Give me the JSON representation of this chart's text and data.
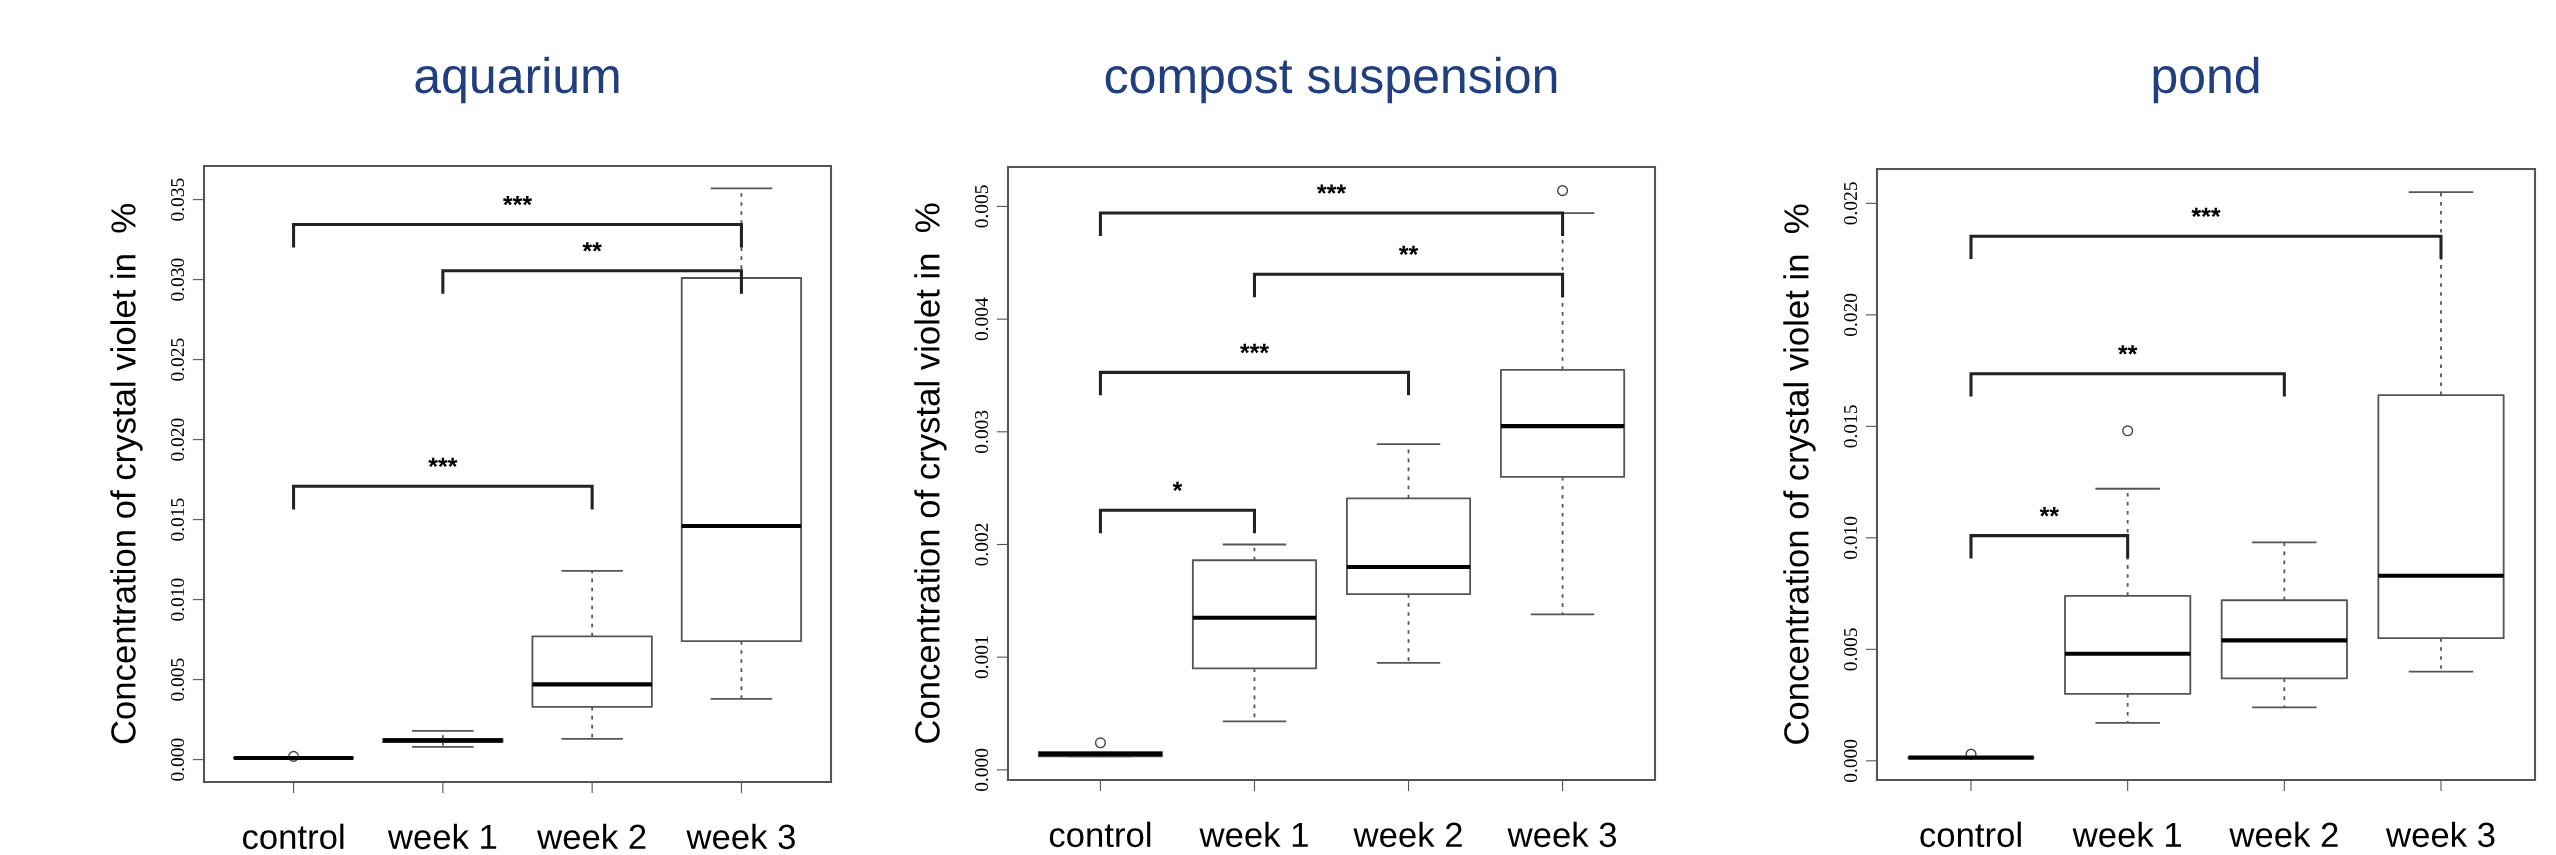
{
  "chart_data": [
    {
      "type": "box",
      "title": "aquarium",
      "ylabel": "Concentration of crystal violet in  %",
      "categories": [
        "control",
        "week 1",
        "week 2",
        "week 3"
      ],
      "boxes": [
        {
          "low": 0.0001,
          "q1": 0.0001,
          "median": 0.0001,
          "q3": 0.0001,
          "high": 0.0001,
          "outliers": [
            0.0002
          ]
        },
        {
          "low": 0.0008,
          "q1": 0.0011,
          "median": 0.0012,
          "q3": 0.0013,
          "high": 0.0018
        },
        {
          "low": 0.0013,
          "q1": 0.0033,
          "median": 0.0047,
          "q3": 0.0077,
          "high": 0.0118
        },
        {
          "low": 0.0038,
          "q1": 0.0074,
          "median": 0.0146,
          "q3": 0.0301,
          "high": 0.0357
        }
      ],
      "ylim": [
        -0.0014,
        0.0371
      ],
      "yticks": [
        {
          "value": 0,
          "label": "0.000"
        },
        {
          "value": 0.005,
          "label": "0.005"
        },
        {
          "value": 0.01,
          "label": "0.010"
        },
        {
          "value": 0.015,
          "label": "0.015"
        },
        {
          "value": 0.02,
          "label": "0.020"
        },
        {
          "value": 0.025,
          "label": "0.025"
        },
        {
          "value": 0.03,
          "label": "0.030"
        },
        {
          "value": 0.035,
          "label": "0.035"
        }
      ],
      "annotations": [
        "***",
        "**",
        "***"
      ],
      "grid": false
    },
    {
      "type": "box",
      "title": "compost suspension",
      "ylabel": "Concentration of crystal violet in  %",
      "categories": [
        "control",
        "week 1",
        "week 2",
        "week 3"
      ],
      "boxes": [
        {
          "low": 0.00012,
          "q1": 0.00012,
          "median": 0.00014,
          "q3": 0.00016,
          "high": 0.00016,
          "outliers": [
            0.00024
          ]
        },
        {
          "low": 0.00043,
          "q1": 0.0009,
          "median": 0.00135,
          "q3": 0.00186,
          "high": 0.002
        },
        {
          "low": 0.00095,
          "q1": 0.00156,
          "median": 0.0018,
          "q3": 0.00241,
          "high": 0.00289
        },
        {
          "low": 0.00138,
          "q1": 0.0026,
          "median": 0.00305,
          "q3": 0.00355,
          "high": 0.00494,
          "outliers": [
            0.00514
          ]
        }
      ],
      "ylim": [
        -9e-05,
        0.00535
      ],
      "yticks": [
        {
          "value": 0,
          "label": "0.000"
        },
        {
          "value": 0.001,
          "label": "0.001"
        },
        {
          "value": 0.002,
          "label": "0.002"
        },
        {
          "value": 0.003,
          "label": "0.003"
        },
        {
          "value": 0.004,
          "label": "0.004"
        },
        {
          "value": 0.005,
          "label": "0.005"
        }
      ],
      "annotations": [
        "***",
        "**",
        "***",
        "*"
      ],
      "grid": false
    },
    {
      "type": "box",
      "title": "pond",
      "ylabel": "Concentration of crystal violet in  %",
      "categories": [
        "control",
        "week 1",
        "week 2",
        "week 3"
      ],
      "boxes": [
        {
          "low": 0.00014,
          "q1": 0.00014,
          "median": 0.00014,
          "q3": 0.00014,
          "high": 0.00014,
          "outliers": [
            0.0003
          ]
        },
        {
          "low": 0.0017,
          "q1": 0.003,
          "median": 0.0048,
          "q3": 0.0074,
          "high": 0.0122,
          "outliers": [
            0.0148
          ]
        },
        {
          "low": 0.0024,
          "q1": 0.0037,
          "median": 0.0054,
          "q3": 0.0072,
          "high": 0.0098
        },
        {
          "low": 0.004,
          "q1": 0.0055,
          "median": 0.0083,
          "q3": 0.0164,
          "high": 0.0255
        }
      ],
      "ylim": [
        -0.00086,
        0.02654
      ],
      "yticks": [
        {
          "value": 0,
          "label": "0.000"
        },
        {
          "value": 0.005,
          "label": "0.005"
        },
        {
          "value": 0.01,
          "label": "0.010"
        },
        {
          "value": 0.015,
          "label": "0.015"
        },
        {
          "value": 0.02,
          "label": "0.020"
        },
        {
          "value": 0.025,
          "label": "0.025"
        }
      ],
      "annotations": [
        "***",
        "**",
        "**"
      ],
      "grid": false
    }
  ]
}
